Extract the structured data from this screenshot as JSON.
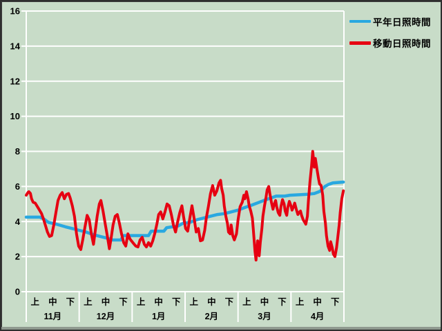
{
  "colors": {
    "background": "#c8dcc8",
    "grid": "#ffffff",
    "text": "#000000",
    "normal_line": "#29a8e0",
    "moving_line": "#e60012"
  },
  "legend": {
    "items": [
      {
        "label": "平年日照時間",
        "color": "#29a8e0"
      },
      {
        "label": "移動日照時間",
        "color": "#e60012"
      }
    ]
  },
  "chart_data": {
    "type": "line",
    "title": "",
    "legend_position": "top-right",
    "grid": {
      "horizontal": true,
      "vertical": false,
      "color": "#ffffff"
    },
    "y_axis": {
      "min": 0,
      "max": 16,
      "step": 2,
      "ticks": [
        0,
        2,
        4,
        6,
        8,
        10,
        12,
        14,
        16
      ]
    },
    "x_axis": {
      "x_range": [
        0,
        6
      ],
      "month_labels": [
        "11月",
        "12月",
        "1月",
        "2月",
        "3月",
        "4月"
      ],
      "decade_labels": [
        "上",
        "中",
        "下"
      ]
    },
    "series": [
      {
        "name": "平年日照時間",
        "color": "#29a8e0",
        "width": 4.5,
        "points": [
          [
            0,
            4.25
          ],
          [
            0.26,
            4.25
          ],
          [
            0.33,
            4.15
          ],
          [
            0.42,
            3.95
          ],
          [
            0.57,
            3.85
          ],
          [
            0.74,
            3.7
          ],
          [
            0.87,
            3.6
          ],
          [
            1,
            3.5
          ],
          [
            1.13,
            3.4
          ],
          [
            1.27,
            3.25
          ],
          [
            1.4,
            3.15
          ],
          [
            1.53,
            3.05
          ],
          [
            1.63,
            2.95
          ],
          [
            1.79,
            2.95
          ],
          [
            1.83,
            3.2
          ],
          [
            2.31,
            3.2
          ],
          [
            2.36,
            3.45
          ],
          [
            2.6,
            3.45
          ],
          [
            2.65,
            3.65
          ],
          [
            2.87,
            3.75
          ],
          [
            2.96,
            3.9
          ],
          [
            3.09,
            3.95
          ],
          [
            3.22,
            4.1
          ],
          [
            3.35,
            4.2
          ],
          [
            3.48,
            4.3
          ],
          [
            3.61,
            4.4
          ],
          [
            3.74,
            4.45
          ],
          [
            3.87,
            4.55
          ],
          [
            4,
            4.65
          ],
          [
            4.13,
            4.8
          ],
          [
            4.27,
            4.95
          ],
          [
            4.4,
            5.1
          ],
          [
            4.53,
            5.25
          ],
          [
            4.63,
            5.35
          ],
          [
            4.72,
            5.45
          ],
          [
            4.88,
            5.45
          ],
          [
            4.98,
            5.5
          ],
          [
            5.31,
            5.55
          ],
          [
            5.44,
            5.6
          ],
          [
            5.53,
            5.7
          ],
          [
            5.58,
            5.8
          ],
          [
            5.64,
            6.0
          ],
          [
            5.7,
            6.1
          ],
          [
            5.79,
            6.2
          ],
          [
            5.99,
            6.25
          ]
        ]
      },
      {
        "name": "移動日照時間",
        "color": "#e60012",
        "width": 4,
        "points": [
          [
            0,
            5.5
          ],
          [
            0.03,
            5.65
          ],
          [
            0.05,
            5.7
          ],
          [
            0.08,
            5.6
          ],
          [
            0.1,
            5.3
          ],
          [
            0.13,
            5.1
          ],
          [
            0.17,
            5.05
          ],
          [
            0.21,
            4.85
          ],
          [
            0.25,
            4.65
          ],
          [
            0.29,
            4.45
          ],
          [
            0.33,
            4.1
          ],
          [
            0.37,
            3.7
          ],
          [
            0.4,
            3.4
          ],
          [
            0.44,
            3.15
          ],
          [
            0.48,
            3.2
          ],
          [
            0.52,
            3.8
          ],
          [
            0.56,
            4.5
          ],
          [
            0.6,
            5.2
          ],
          [
            0.64,
            5.5
          ],
          [
            0.68,
            5.65
          ],
          [
            0.72,
            5.3
          ],
          [
            0.76,
            5.55
          ],
          [
            0.8,
            5.6
          ],
          [
            0.83,
            5.35
          ],
          [
            0.87,
            4.9
          ],
          [
            0.91,
            4.3
          ],
          [
            0.95,
            3.3
          ],
          [
            0.99,
            2.6
          ],
          [
            1.03,
            2.4
          ],
          [
            1.07,
            3.0
          ],
          [
            1.11,
            3.7
          ],
          [
            1.15,
            4.35
          ],
          [
            1.19,
            4.1
          ],
          [
            1.23,
            3.3
          ],
          [
            1.27,
            2.7
          ],
          [
            1.3,
            3.4
          ],
          [
            1.34,
            4.3
          ],
          [
            1.38,
            5.0
          ],
          [
            1.41,
            5.2
          ],
          [
            1.45,
            4.6
          ],
          [
            1.49,
            3.9
          ],
          [
            1.53,
            3.2
          ],
          [
            1.57,
            2.45
          ],
          [
            1.6,
            3.0
          ],
          [
            1.64,
            3.8
          ],
          [
            1.68,
            4.3
          ],
          [
            1.72,
            4.4
          ],
          [
            1.76,
            3.9
          ],
          [
            1.8,
            3.3
          ],
          [
            1.84,
            2.8
          ],
          [
            1.88,
            2.6
          ],
          [
            1.92,
            3.3
          ],
          [
            1.96,
            3.0
          ],
          [
            2,
            2.85
          ],
          [
            2.04,
            2.7
          ],
          [
            2.07,
            2.6
          ],
          [
            2.11,
            2.55
          ],
          [
            2.15,
            2.95
          ],
          [
            2.19,
            3.1
          ],
          [
            2.23,
            2.7
          ],
          [
            2.27,
            2.55
          ],
          [
            2.31,
            2.8
          ],
          [
            2.35,
            2.6
          ],
          [
            2.39,
            2.9
          ],
          [
            2.43,
            3.35
          ],
          [
            2.47,
            3.9
          ],
          [
            2.5,
            4.4
          ],
          [
            2.54,
            4.55
          ],
          [
            2.58,
            4.15
          ],
          [
            2.62,
            4.55
          ],
          [
            2.66,
            5.0
          ],
          [
            2.7,
            4.9
          ],
          [
            2.74,
            4.4
          ],
          [
            2.78,
            3.8
          ],
          [
            2.82,
            3.4
          ],
          [
            2.86,
            4.0
          ],
          [
            2.9,
            4.5
          ],
          [
            2.94,
            4.9
          ],
          [
            2.97,
            4.3
          ],
          [
            3.01,
            3.6
          ],
          [
            3.05,
            3.45
          ],
          [
            3.09,
            4.2
          ],
          [
            3.13,
            4.9
          ],
          [
            3.17,
            4.2
          ],
          [
            3.21,
            3.4
          ],
          [
            3.25,
            3.6
          ],
          [
            3.29,
            2.9
          ],
          [
            3.33,
            2.95
          ],
          [
            3.37,
            3.5
          ],
          [
            3.4,
            4.2
          ],
          [
            3.44,
            4.85
          ],
          [
            3.48,
            5.6
          ],
          [
            3.52,
            6.05
          ],
          [
            3.56,
            5.5
          ],
          [
            3.6,
            5.75
          ],
          [
            3.64,
            6.2
          ],
          [
            3.67,
            6.35
          ],
          [
            3.69,
            5.9
          ],
          [
            3.72,
            5.5
          ],
          [
            3.74,
            4.9
          ],
          [
            3.77,
            4.3
          ],
          [
            3.8,
            3.9
          ],
          [
            3.82,
            3.4
          ],
          [
            3.85,
            3.3
          ],
          [
            3.87,
            3.8
          ],
          [
            3.9,
            3.2
          ],
          [
            3.93,
            2.95
          ],
          [
            3.97,
            3.3
          ],
          [
            4,
            4.1
          ],
          [
            4.04,
            4.85
          ],
          [
            4.08,
            5.1
          ],
          [
            4.11,
            5.5
          ],
          [
            4.13,
            5.3
          ],
          [
            4.16,
            5.7
          ],
          [
            4.19,
            5.3
          ],
          [
            4.21,
            4.9
          ],
          [
            4.24,
            4.6
          ],
          [
            4.27,
            4.2
          ],
          [
            4.29,
            3.5
          ],
          [
            4.32,
            2.3
          ],
          [
            4.34,
            1.8
          ],
          [
            4.37,
            2.9
          ],
          [
            4.4,
            2.05
          ],
          [
            4.42,
            2.8
          ],
          [
            4.45,
            3.6
          ],
          [
            4.47,
            4.3
          ],
          [
            4.5,
            4.9
          ],
          [
            4.53,
            5.4
          ],
          [
            4.55,
            5.8
          ],
          [
            4.58,
            6.0
          ],
          [
            4.6,
            5.6
          ],
          [
            4.63,
            5.1
          ],
          [
            4.66,
            4.7
          ],
          [
            4.68,
            4.95
          ],
          [
            4.71,
            5.2
          ],
          [
            4.73,
            4.85
          ],
          [
            4.76,
            4.5
          ],
          [
            4.79,
            4.35
          ],
          [
            4.81,
            4.85
          ],
          [
            4.84,
            5.25
          ],
          [
            4.87,
            5.0
          ],
          [
            4.89,
            4.6
          ],
          [
            4.92,
            4.35
          ],
          [
            4.94,
            4.8
          ],
          [
            4.97,
            5.15
          ],
          [
            5,
            4.9
          ],
          [
            5.02,
            4.65
          ],
          [
            5.05,
            4.85
          ],
          [
            5.07,
            5.05
          ],
          [
            5.1,
            4.7
          ],
          [
            5.13,
            4.4
          ],
          [
            5.15,
            4.5
          ],
          [
            5.18,
            4.6
          ],
          [
            5.2,
            4.35
          ],
          [
            5.23,
            4.1
          ],
          [
            5.26,
            3.95
          ],
          [
            5.28,
            3.85
          ],
          [
            5.31,
            4.3
          ],
          [
            5.33,
            5.2
          ],
          [
            5.36,
            6.3
          ],
          [
            5.39,
            7.2
          ],
          [
            5.41,
            8.0
          ],
          [
            5.44,
            7.1
          ],
          [
            5.46,
            7.6
          ],
          [
            5.49,
            7.0
          ],
          [
            5.52,
            6.45
          ],
          [
            5.54,
            6.15
          ],
          [
            5.57,
            6.05
          ],
          [
            5.6,
            5.5
          ],
          [
            5.62,
            4.6
          ],
          [
            5.65,
            3.9
          ],
          [
            5.67,
            3.2
          ],
          [
            5.7,
            2.6
          ],
          [
            5.73,
            2.35
          ],
          [
            5.75,
            2.85
          ],
          [
            5.78,
            2.5
          ],
          [
            5.8,
            2.15
          ],
          [
            5.83,
            2.0
          ],
          [
            5.86,
            2.5
          ],
          [
            5.88,
            3.0
          ],
          [
            5.91,
            3.8
          ],
          [
            5.93,
            4.5
          ],
          [
            5.96,
            5.3
          ],
          [
            5.99,
            5.75
          ]
        ]
      }
    ]
  }
}
